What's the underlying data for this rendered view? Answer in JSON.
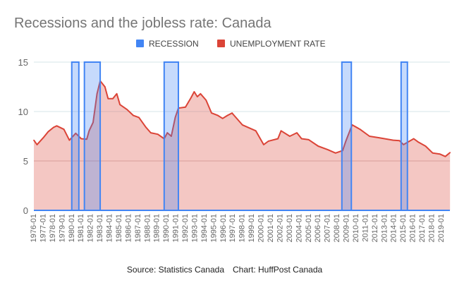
{
  "chart_data": {
    "type": "area",
    "title": "Recessions and the jobless rate: Canada",
    "source": "Source: Statistics Canada",
    "credit": "Chart: HuffPost Canada",
    "legend_placement": "top",
    "ylim": [
      0,
      15
    ],
    "yticks": [
      0,
      5,
      10,
      15
    ],
    "xlim": [
      "1976-01",
      "2019-12"
    ],
    "xticks": [
      "1976-01",
      "1977-01",
      "1978-01",
      "1979-01",
      "1980-01",
      "1981-01",
      "1982-01",
      "1983-01",
      "1984-01",
      "1985-01",
      "1986-01",
      "1987-01",
      "1988-01",
      "1989-01",
      "1990-01",
      "1991-01",
      "1992-01",
      "1993-01",
      "1994-01",
      "1995-01",
      "1996-01",
      "1997-01",
      "1998-01",
      "1999-01",
      "2000-01",
      "2001-01",
      "2002-01",
      "2003-01",
      "2004-01",
      "2005-01",
      "2006-01",
      "2007-01",
      "2008-01",
      "2009-01",
      "2010-01",
      "2011-01",
      "2012-01",
      "2013-01",
      "2014-01",
      "2015-01",
      "2016-01",
      "2017-01",
      "2018-01",
      "2019-01"
    ],
    "grid": true,
    "series": [
      {
        "name": "RECESSION",
        "color": "#4285F4",
        "value": 15,
        "periods": [
          [
            "1980-01",
            "1980-10"
          ],
          [
            "1981-05",
            "1983-01"
          ],
          [
            "1989-10",
            "1991-04"
          ],
          [
            "2008-07",
            "2009-07"
          ],
          [
            "2014-10",
            "2015-06"
          ]
        ]
      },
      {
        "name": "UNEMPLOYMENT RATE",
        "color": "#DB4437",
        "points": [
          [
            "1976-01",
            7.1
          ],
          [
            "1976-05",
            6.65
          ],
          [
            "1977-01",
            7.35
          ],
          [
            "1977-07",
            7.95
          ],
          [
            "1978-02",
            8.4
          ],
          [
            "1978-06",
            8.55
          ],
          [
            "1979-03",
            8.2
          ],
          [
            "1979-10",
            7.1
          ],
          [
            "1980-06",
            7.8
          ],
          [
            "1981-01",
            7.25
          ],
          [
            "1981-08",
            7.2
          ],
          [
            "1981-11",
            8.05
          ],
          [
            "1982-04",
            8.9
          ],
          [
            "1982-09",
            11.8
          ],
          [
            "1983-01",
            13.1
          ],
          [
            "1983-07",
            12.5
          ],
          [
            "1983-11",
            11.3
          ],
          [
            "1984-05",
            11.3
          ],
          [
            "1984-10",
            11.8
          ],
          [
            "1985-02",
            10.7
          ],
          [
            "1985-11",
            10.2
          ],
          [
            "1986-07",
            9.6
          ],
          [
            "1987-02",
            9.4
          ],
          [
            "1987-11",
            8.4
          ],
          [
            "1988-05",
            7.85
          ],
          [
            "1989-02",
            7.7
          ],
          [
            "1989-10",
            7.25
          ],
          [
            "1990-02",
            7.85
          ],
          [
            "1990-07",
            7.5
          ],
          [
            "1990-12",
            9.4
          ],
          [
            "1991-04",
            10.35
          ],
          [
            "1992-01",
            10.45
          ],
          [
            "1992-08",
            11.4
          ],
          [
            "1992-12",
            12.0
          ],
          [
            "1993-04",
            11.5
          ],
          [
            "1993-08",
            11.8
          ],
          [
            "1994-03",
            11.15
          ],
          [
            "1994-10",
            9.85
          ],
          [
            "1995-06",
            9.6
          ],
          [
            "1995-12",
            9.3
          ],
          [
            "1996-06",
            9.6
          ],
          [
            "1996-12",
            9.85
          ],
          [
            "1997-01",
            9.75
          ],
          [
            "1998-01",
            8.65
          ],
          [
            "1999-06",
            8.05
          ],
          [
            "2000-04",
            6.65
          ],
          [
            "2000-10",
            7.0
          ],
          [
            "2001-10",
            7.25
          ],
          [
            "2002-02",
            8.05
          ],
          [
            "2003-01",
            7.5
          ],
          [
            "2003-10",
            7.85
          ],
          [
            "2004-04",
            7.25
          ],
          [
            "2005-01",
            7.15
          ],
          [
            "2006-01",
            6.5
          ],
          [
            "2007-01",
            6.15
          ],
          [
            "2007-11",
            5.8
          ],
          [
            "2008-08",
            6.05
          ],
          [
            "2008-12",
            7.0
          ],
          [
            "2009-08",
            8.65
          ],
          [
            "2010-06",
            8.2
          ],
          [
            "2011-06",
            7.5
          ],
          [
            "2012-06",
            7.35
          ],
          [
            "2013-12",
            7.1
          ],
          [
            "2014-08",
            7.05
          ],
          [
            "2015-01",
            6.65
          ],
          [
            "2016-02",
            7.25
          ],
          [
            "2016-08",
            6.9
          ],
          [
            "2017-05",
            6.5
          ],
          [
            "2018-02",
            5.8
          ],
          [
            "2018-11",
            5.7
          ],
          [
            "2019-06",
            5.45
          ],
          [
            "2019-12",
            5.85
          ]
        ]
      }
    ]
  }
}
